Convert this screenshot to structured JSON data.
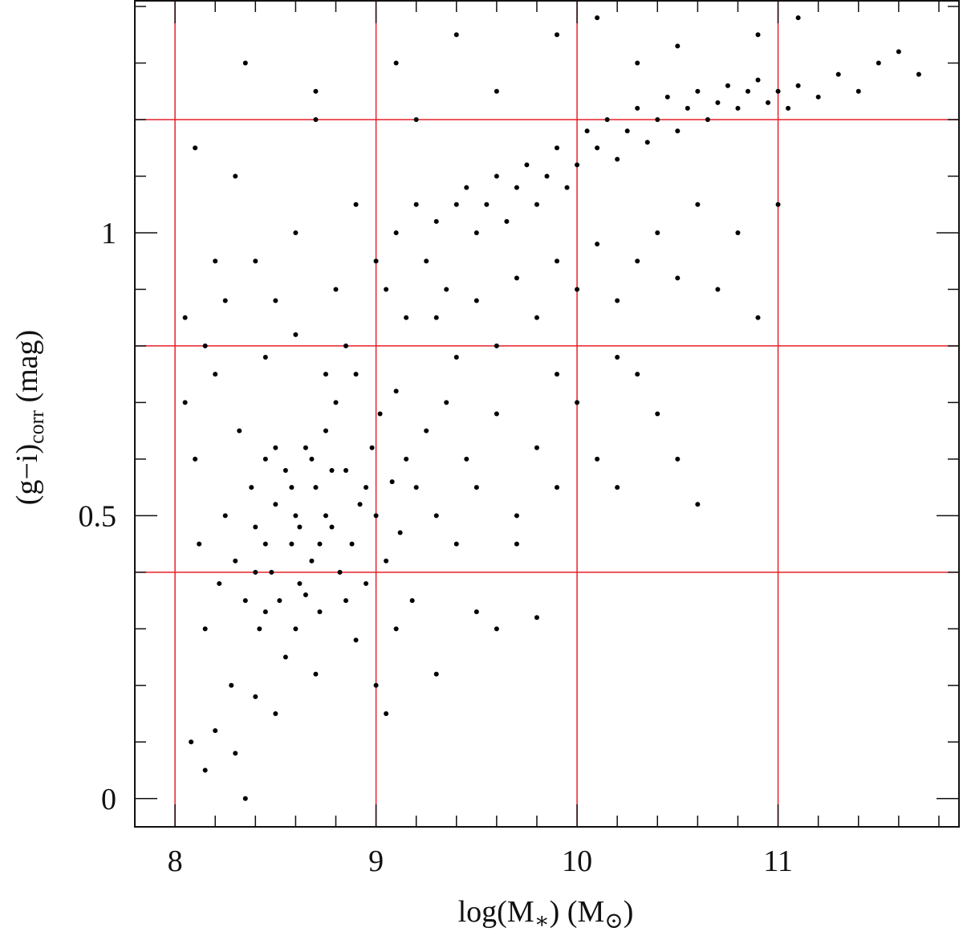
{
  "chart_data": {
    "type": "scatter",
    "xlabel": {
      "text1": "log(M",
      "sub1": "∗",
      "text2": ") (M",
      "sub2": "⊙",
      "text3": ")"
    },
    "ylabel": {
      "text1": "(g−i)",
      "sub1": "corr",
      "text2": " (mag)"
    },
    "xlim": [
      7.8,
      11.9
    ],
    "ylim": [
      -0.05,
      1.41
    ],
    "xticks": [
      8,
      9,
      10,
      11
    ],
    "yticks": [
      0,
      0.5,
      1
    ],
    "xminor_ticks": [
      7.8,
      8.2,
      8.4,
      8.6,
      8.8,
      9.2,
      9.4,
      9.6,
      9.8,
      10.2,
      10.4,
      10.6,
      10.8,
      11.2,
      11.4,
      11.6,
      11.8
    ],
    "yminor_ticks": [
      0.1,
      0.2,
      0.3,
      0.4,
      0.6,
      0.7,
      0.8,
      0.9,
      1.1,
      1.2,
      1.3,
      1.4
    ],
    "xgrid": [
      8,
      9,
      10,
      11
    ],
    "ygrid": [
      0.4,
      0.8,
      1.2
    ],
    "grid_color": "#e8202a",
    "color": "#000000",
    "x": [
      8.05,
      8.1,
      8.12,
      8.15,
      8.2,
      8.22,
      8.25,
      8.28,
      8.3,
      8.32,
      8.35,
      8.38,
      8.4,
      8.42,
      8.45,
      8.48,
      8.5,
      8.52,
      8.55,
      8.58,
      8.6,
      8.62,
      8.65,
      8.68,
      8.7,
      8.72,
      8.75,
      8.78,
      8.8,
      8.82,
      8.85,
      8.88,
      8.9,
      8.92,
      8.95,
      8.98,
      9.0,
      9.02,
      9.05,
      9.08,
      9.1,
      9.12,
      9.15,
      9.18,
      9.2,
      9.25,
      9.3,
      9.35,
      9.4,
      9.45,
      9.5,
      9.6,
      9.7,
      9.8,
      9.9,
      10.0,
      10.1,
      10.2,
      8.55,
      8.6,
      8.4,
      8.2,
      8.08,
      8.3,
      8.5,
      8.7,
      8.9,
      9.0,
      9.05,
      9.1,
      9.3,
      9.5,
      9.6,
      9.8,
      8.35,
      8.15,
      8.45,
      8.5,
      8.65,
      8.75,
      8.85,
      8.95,
      8.58,
      8.62,
      8.68,
      8.72,
      8.78,
      8.4,
      8.45,
      9.0,
      9.05,
      9.1,
      9.15,
      9.2,
      9.25,
      9.3,
      9.35,
      9.4,
      9.45,
      9.5,
      9.55,
      9.6,
      9.65,
      9.7,
      9.75,
      9.8,
      9.85,
      9.9,
      9.95,
      10.0,
      10.05,
      10.1,
      10.15,
      10.2,
      10.25,
      10.3,
      10.35,
      10.4,
      10.45,
      10.5,
      10.55,
      10.6,
      10.65,
      10.7,
      10.75,
      10.8,
      10.85,
      10.9,
      10.95,
      11.0,
      11.05,
      11.1,
      11.2,
      11.3,
      11.4,
      11.5,
      11.6,
      11.7,
      9.3,
      9.4,
      9.5,
      9.6,
      9.7,
      9.8,
      9.9,
      10.0,
      10.1,
      10.2,
      10.3,
      10.4,
      10.5,
      10.6,
      10.7,
      10.8,
      10.9,
      11.0,
      10.3,
      10.4,
      10.5,
      10.6,
      10.2,
      9.9,
      9.7,
      8.1,
      8.3,
      8.4,
      8.5,
      8.6,
      8.7,
      8.8,
      8.9,
      8.2,
      8.35,
      8.7,
      9.1,
      9.2,
      9.4,
      9.6,
      9.9,
      10.1,
      10.3,
      10.5,
      10.9,
      11.1,
      8.05,
      8.15,
      8.25,
      8.45,
      8.6,
      8.75,
      8.85
    ],
    "y": [
      0.85,
      0.6,
      0.45,
      0.3,
      0.75,
      0.38,
      0.5,
      0.2,
      0.42,
      0.65,
      0.35,
      0.55,
      0.48,
      0.3,
      0.6,
      0.4,
      0.52,
      0.35,
      0.58,
      0.45,
      0.5,
      0.38,
      0.62,
      0.42,
      0.55,
      0.33,
      0.65,
      0.48,
      0.7,
      0.4,
      0.58,
      0.45,
      0.75,
      0.52,
      0.38,
      0.62,
      0.5,
      0.68,
      0.42,
      0.56,
      0.72,
      0.47,
      0.6,
      0.35,
      0.55,
      0.65,
      0.5,
      0.7,
      0.45,
      0.6,
      0.55,
      0.68,
      0.5,
      0.62,
      0.75,
      0.7,
      0.6,
      0.78,
      0.25,
      0.3,
      0.18,
      0.12,
      0.1,
      0.08,
      0.15,
      0.22,
      0.28,
      0.2,
      0.15,
      0.3,
      0.22,
      0.33,
      0.3,
      0.32,
      0.0,
      0.05,
      0.45,
      0.62,
      0.36,
      0.5,
      0.35,
      0.55,
      0.55,
      0.48,
      0.6,
      0.45,
      0.58,
      0.4,
      0.33,
      0.95,
      0.9,
      1.0,
      0.85,
      1.05,
      0.95,
      1.02,
      0.9,
      1.05,
      1.08,
      1.0,
      1.05,
      1.1,
      1.02,
      1.08,
      1.12,
      1.05,
      1.1,
      1.15,
      1.08,
      1.12,
      1.18,
      1.15,
      1.2,
      1.13,
      1.18,
      1.22,
      1.16,
      1.2,
      1.24,
      1.18,
      1.22,
      1.25,
      1.2,
      1.23,
      1.26,
      1.22,
      1.25,
      1.27,
      1.23,
      1.25,
      1.22,
      1.26,
      1.24,
      1.28,
      1.25,
      1.3,
      1.32,
      1.28,
      0.85,
      0.78,
      0.88,
      0.8,
      0.92,
      0.85,
      0.95,
      0.9,
      0.98,
      0.88,
      0.95,
      1.0,
      0.92,
      1.05,
      0.9,
      1.0,
      0.85,
      1.05,
      0.75,
      0.68,
      0.6,
      0.52,
      0.55,
      0.55,
      0.45,
      1.15,
      1.1,
      0.95,
      0.88,
      1.0,
      1.2,
      0.9,
      1.05,
      0.95,
      1.3,
      1.25,
      1.3,
      1.2,
      1.35,
      1.25,
      1.35,
      1.38,
      1.3,
      1.33,
      1.35,
      1.38,
      0.7,
      0.8,
      0.88,
      0.78,
      0.82,
      0.75,
      0.8
    ]
  }
}
